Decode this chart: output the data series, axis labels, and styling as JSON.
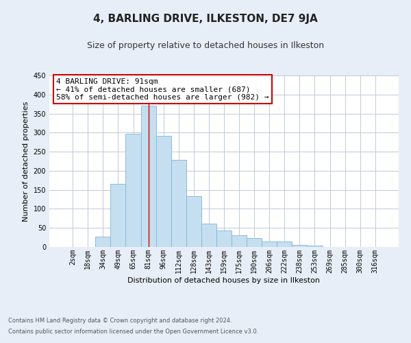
{
  "title": "4, BARLING DRIVE, ILKESTON, DE7 9JA",
  "subtitle": "Size of property relative to detached houses in Ilkeston",
  "xlabel": "Distribution of detached houses by size in Ilkeston",
  "ylabel": "Number of detached properties",
  "bar_labels": [
    "2sqm",
    "18sqm",
    "34sqm",
    "49sqm",
    "65sqm",
    "81sqm",
    "96sqm",
    "112sqm",
    "128sqm",
    "143sqm",
    "159sqm",
    "175sqm",
    "190sqm",
    "206sqm",
    "222sqm",
    "238sqm",
    "253sqm",
    "269sqm",
    "285sqm",
    "300sqm",
    "316sqm"
  ],
  "bar_values": [
    0,
    0,
    27,
    165,
    297,
    370,
    291,
    229,
    134,
    62,
    44,
    30,
    23,
    14,
    15,
    6,
    3,
    0,
    0,
    0,
    0
  ],
  "bar_color": "#c5dff0",
  "bar_edge_color": "#7fb4d4",
  "highlight_bar_index": 5,
  "highlight_line_color": "#cc0000",
  "ylim": [
    0,
    450
  ],
  "yticks": [
    0,
    50,
    100,
    150,
    200,
    250,
    300,
    350,
    400,
    450
  ],
  "annotation_title": "4 BARLING DRIVE: 91sqm",
  "annotation_line1": "← 41% of detached houses are smaller (687)",
  "annotation_line2": "58% of semi-detached houses are larger (982) →",
  "annotation_box_color": "#ffffff",
  "annotation_box_edge": "#cc0000",
  "footer_line1": "Contains HM Land Registry data © Crown copyright and database right 2024.",
  "footer_line2": "Contains public sector information licensed under the Open Government Licence v3.0.",
  "background_color": "#e8eef8",
  "plot_background": "#ffffff",
  "grid_color": "#c0c8d8",
  "title_fontsize": 11,
  "subtitle_fontsize": 9,
  "annotation_fontsize": 8,
  "axis_label_fontsize": 8,
  "tick_fontsize": 7,
  "footer_fontsize": 6
}
